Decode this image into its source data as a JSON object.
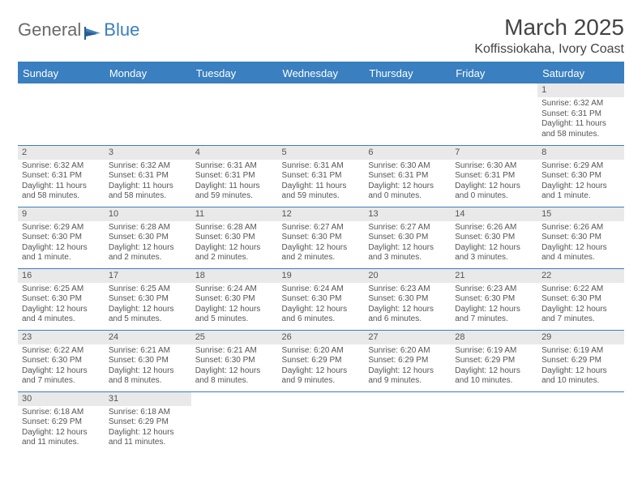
{
  "logo": {
    "text1": "General",
    "text2": "Blue"
  },
  "title": "March 2025",
  "location": "Koffissiokaha, Ivory Coast",
  "weekdays": [
    "Sunday",
    "Monday",
    "Tuesday",
    "Wednesday",
    "Thursday",
    "Friday",
    "Saturday"
  ],
  "colors": {
    "header_bg": "#3a7fbf",
    "daynum_bg": "#e9e9e9",
    "text": "#555",
    "border": "#3a7fbf"
  },
  "weeks": [
    [
      {
        "n": "",
        "lines": []
      },
      {
        "n": "",
        "lines": []
      },
      {
        "n": "",
        "lines": []
      },
      {
        "n": "",
        "lines": []
      },
      {
        "n": "",
        "lines": []
      },
      {
        "n": "",
        "lines": []
      },
      {
        "n": "1",
        "lines": [
          "Sunrise: 6:32 AM",
          "Sunset: 6:31 PM",
          "Daylight: 11 hours and 58 minutes."
        ]
      }
    ],
    [
      {
        "n": "2",
        "lines": [
          "Sunrise: 6:32 AM",
          "Sunset: 6:31 PM",
          "Daylight: 11 hours and 58 minutes."
        ]
      },
      {
        "n": "3",
        "lines": [
          "Sunrise: 6:32 AM",
          "Sunset: 6:31 PM",
          "Daylight: 11 hours and 58 minutes."
        ]
      },
      {
        "n": "4",
        "lines": [
          "Sunrise: 6:31 AM",
          "Sunset: 6:31 PM",
          "Daylight: 11 hours and 59 minutes."
        ]
      },
      {
        "n": "5",
        "lines": [
          "Sunrise: 6:31 AM",
          "Sunset: 6:31 PM",
          "Daylight: 11 hours and 59 minutes."
        ]
      },
      {
        "n": "6",
        "lines": [
          "Sunrise: 6:30 AM",
          "Sunset: 6:31 PM",
          "Daylight: 12 hours and 0 minutes."
        ]
      },
      {
        "n": "7",
        "lines": [
          "Sunrise: 6:30 AM",
          "Sunset: 6:31 PM",
          "Daylight: 12 hours and 0 minutes."
        ]
      },
      {
        "n": "8",
        "lines": [
          "Sunrise: 6:29 AM",
          "Sunset: 6:30 PM",
          "Daylight: 12 hours and 1 minute."
        ]
      }
    ],
    [
      {
        "n": "9",
        "lines": [
          "Sunrise: 6:29 AM",
          "Sunset: 6:30 PM",
          "Daylight: 12 hours and 1 minute."
        ]
      },
      {
        "n": "10",
        "lines": [
          "Sunrise: 6:28 AM",
          "Sunset: 6:30 PM",
          "Daylight: 12 hours and 2 minutes."
        ]
      },
      {
        "n": "11",
        "lines": [
          "Sunrise: 6:28 AM",
          "Sunset: 6:30 PM",
          "Daylight: 12 hours and 2 minutes."
        ]
      },
      {
        "n": "12",
        "lines": [
          "Sunrise: 6:27 AM",
          "Sunset: 6:30 PM",
          "Daylight: 12 hours and 2 minutes."
        ]
      },
      {
        "n": "13",
        "lines": [
          "Sunrise: 6:27 AM",
          "Sunset: 6:30 PM",
          "Daylight: 12 hours and 3 minutes."
        ]
      },
      {
        "n": "14",
        "lines": [
          "Sunrise: 6:26 AM",
          "Sunset: 6:30 PM",
          "Daylight: 12 hours and 3 minutes."
        ]
      },
      {
        "n": "15",
        "lines": [
          "Sunrise: 6:26 AM",
          "Sunset: 6:30 PM",
          "Daylight: 12 hours and 4 minutes."
        ]
      }
    ],
    [
      {
        "n": "16",
        "lines": [
          "Sunrise: 6:25 AM",
          "Sunset: 6:30 PM",
          "Daylight: 12 hours and 4 minutes."
        ]
      },
      {
        "n": "17",
        "lines": [
          "Sunrise: 6:25 AM",
          "Sunset: 6:30 PM",
          "Daylight: 12 hours and 5 minutes."
        ]
      },
      {
        "n": "18",
        "lines": [
          "Sunrise: 6:24 AM",
          "Sunset: 6:30 PM",
          "Daylight: 12 hours and 5 minutes."
        ]
      },
      {
        "n": "19",
        "lines": [
          "Sunrise: 6:24 AM",
          "Sunset: 6:30 PM",
          "Daylight: 12 hours and 6 minutes."
        ]
      },
      {
        "n": "20",
        "lines": [
          "Sunrise: 6:23 AM",
          "Sunset: 6:30 PM",
          "Daylight: 12 hours and 6 minutes."
        ]
      },
      {
        "n": "21",
        "lines": [
          "Sunrise: 6:23 AM",
          "Sunset: 6:30 PM",
          "Daylight: 12 hours and 7 minutes."
        ]
      },
      {
        "n": "22",
        "lines": [
          "Sunrise: 6:22 AM",
          "Sunset: 6:30 PM",
          "Daylight: 12 hours and 7 minutes."
        ]
      }
    ],
    [
      {
        "n": "23",
        "lines": [
          "Sunrise: 6:22 AM",
          "Sunset: 6:30 PM",
          "Daylight: 12 hours and 7 minutes."
        ]
      },
      {
        "n": "24",
        "lines": [
          "Sunrise: 6:21 AM",
          "Sunset: 6:30 PM",
          "Daylight: 12 hours and 8 minutes."
        ]
      },
      {
        "n": "25",
        "lines": [
          "Sunrise: 6:21 AM",
          "Sunset: 6:30 PM",
          "Daylight: 12 hours and 8 minutes."
        ]
      },
      {
        "n": "26",
        "lines": [
          "Sunrise: 6:20 AM",
          "Sunset: 6:29 PM",
          "Daylight: 12 hours and 9 minutes."
        ]
      },
      {
        "n": "27",
        "lines": [
          "Sunrise: 6:20 AM",
          "Sunset: 6:29 PM",
          "Daylight: 12 hours and 9 minutes."
        ]
      },
      {
        "n": "28",
        "lines": [
          "Sunrise: 6:19 AM",
          "Sunset: 6:29 PM",
          "Daylight: 12 hours and 10 minutes."
        ]
      },
      {
        "n": "29",
        "lines": [
          "Sunrise: 6:19 AM",
          "Sunset: 6:29 PM",
          "Daylight: 12 hours and 10 minutes."
        ]
      }
    ],
    [
      {
        "n": "30",
        "lines": [
          "Sunrise: 6:18 AM",
          "Sunset: 6:29 PM",
          "Daylight: 12 hours and 11 minutes."
        ]
      },
      {
        "n": "31",
        "lines": [
          "Sunrise: 6:18 AM",
          "Sunset: 6:29 PM",
          "Daylight: 12 hours and 11 minutes."
        ]
      },
      {
        "n": "",
        "lines": []
      },
      {
        "n": "",
        "lines": []
      },
      {
        "n": "",
        "lines": []
      },
      {
        "n": "",
        "lines": []
      },
      {
        "n": "",
        "lines": []
      }
    ]
  ]
}
